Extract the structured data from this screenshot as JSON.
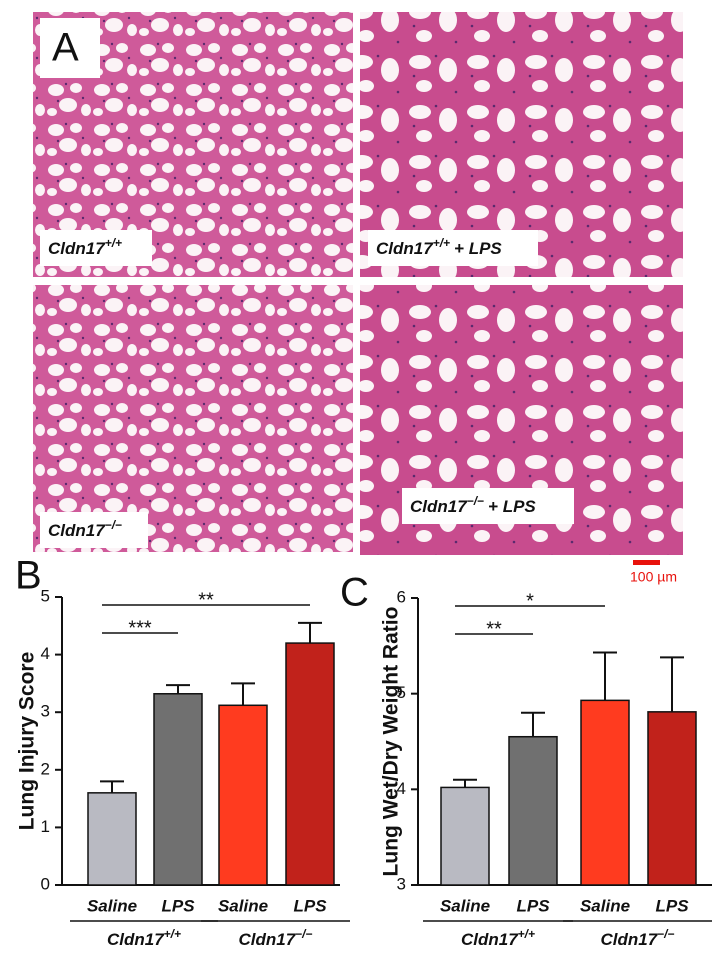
{
  "panel_a": {
    "label": "A",
    "images": [
      {
        "base": "Cldn17",
        "sup": "+/+"
      },
      {
        "base": "Cldn17",
        "sup": "+/+",
        "suffix": "+ LPS"
      },
      {
        "base": "Cldn17",
        "sup": "−/−"
      },
      {
        "base": "Cldn17",
        "sup": "−/−",
        "suffix": "+ LPS"
      }
    ],
    "scale_bar": "100 µm"
  },
  "chart_data": [
    {
      "type": "bar",
      "panel": "B",
      "ylabel": "Lung Injury Score",
      "categories": [
        "Saline",
        "LPS",
        "Saline",
        "LPS"
      ],
      "values": [
        1.6,
        3.32,
        3.12,
        4.2
      ],
      "errors": [
        0.2,
        0.15,
        0.38,
        0.35
      ],
      "colors": [
        "#b9bac2",
        "#707070",
        "#ff3b1f",
        "#c1221b"
      ],
      "groups": [
        {
          "base": "Cldn17",
          "sup": "+/+"
        },
        {
          "base": "Cldn17",
          "sup": "−/−"
        }
      ],
      "annotations": [
        {
          "from": 0,
          "to": 1,
          "label": "***"
        },
        {
          "from": 0,
          "to": 3,
          "label": "**"
        }
      ],
      "ylim": [
        0,
        5
      ],
      "yticks": [
        0,
        1,
        2,
        3,
        4,
        5
      ]
    },
    {
      "type": "bar",
      "panel": "C",
      "ylabel": "Lung Wet/Dry Weight Ratio",
      "categories": [
        "Saline",
        "LPS",
        "Saline",
        "LPS"
      ],
      "values": [
        4.02,
        4.55,
        4.93,
        4.81
      ],
      "errors": [
        0.08,
        0.25,
        0.5,
        0.57
      ],
      "colors": [
        "#b9bac2",
        "#707070",
        "#ff3b1f",
        "#c1221b"
      ],
      "groups": [
        {
          "base": "Cldn17",
          "sup": "+/+"
        },
        {
          "base": "Cldn17",
          "sup": "−/−"
        }
      ],
      "annotations": [
        {
          "from": 0,
          "to": 1,
          "label": "**"
        },
        {
          "from": 0,
          "to": 2,
          "label": "*"
        }
      ],
      "ylim": [
        3,
        6
      ],
      "yticks": [
        3,
        4,
        5,
        6
      ]
    }
  ]
}
